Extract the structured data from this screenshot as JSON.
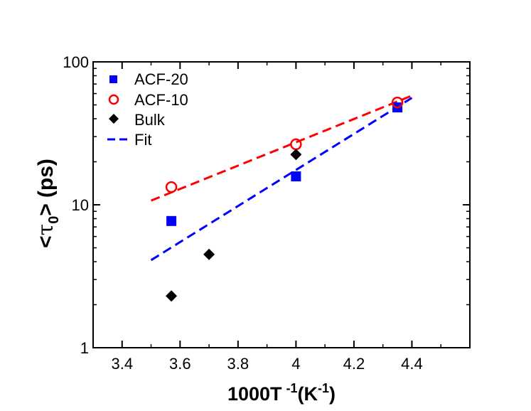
{
  "chart_data": {
    "type": "scatter",
    "title": "",
    "xlabel": {
      "main": "1000T",
      "sup1": "-1",
      "open": "(K",
      "sup2": "-1",
      "close": ")"
    },
    "ylabel": {
      "lt": "<",
      "tau": "τ",
      "sub": "0",
      "gt": ">",
      "unit": "(ps)"
    },
    "xlim": [
      3.3,
      4.6
    ],
    "ylim": [
      1,
      100
    ],
    "yscale": "log",
    "x_ticks": [
      "3.4",
      "3.6",
      "3.8",
      "4",
      "4.2",
      "4.4"
    ],
    "x_tick_values": [
      3.4,
      3.6,
      3.8,
      4.0,
      4.2,
      4.4
    ],
    "y_ticks": [
      "1",
      "10",
      "100"
    ],
    "y_tick_values": [
      1,
      10,
      100
    ],
    "legend_position": "top-left",
    "series": [
      {
        "name": "ACF-20",
        "marker": "square",
        "color": "#0000ff",
        "points": [
          {
            "x": 3.57,
            "y": 7.7
          },
          {
            "x": 4.0,
            "y": 15.8
          },
          {
            "x": 4.35,
            "y": 48
          }
        ]
      },
      {
        "name": "ACF-10",
        "marker": "circle-open",
        "color": "#ff0000",
        "points": [
          {
            "x": 3.57,
            "y": 13.3
          },
          {
            "x": 4.0,
            "y": 26.5
          },
          {
            "x": 4.35,
            "y": 52
          }
        ]
      },
      {
        "name": "Bulk",
        "marker": "diamond",
        "color": "#000000",
        "points": [
          {
            "x": 3.57,
            "y": 2.3
          },
          {
            "x": 3.7,
            "y": 4.5
          },
          {
            "x": 4.0,
            "y": 22.5
          }
        ]
      },
      {
        "name": "Fit",
        "marker": "dashed-line",
        "color": "#0000ff",
        "legend_only": true,
        "points": []
      }
    ],
    "fit_lines": [
      {
        "name": "ACF-10 fit",
        "color": "#ff0000",
        "x": [
          3.5,
          4.4
        ],
        "y": [
          10.7,
          58
        ]
      },
      {
        "name": "ACF-20 fit",
        "color": "#0000ff",
        "x": [
          3.5,
          4.4
        ],
        "y": [
          4.1,
          56
        ]
      }
    ]
  }
}
